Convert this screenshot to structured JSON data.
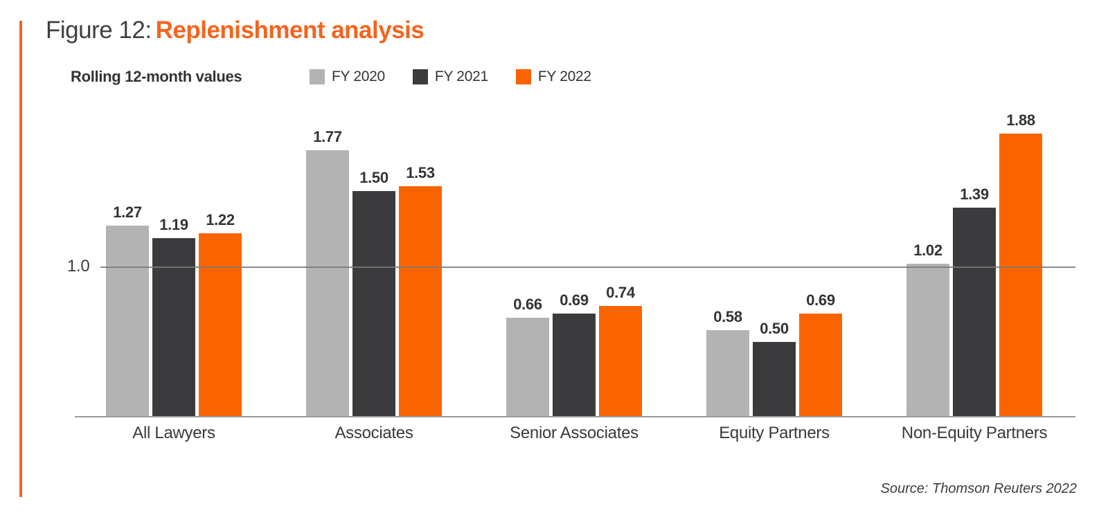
{
  "header": {
    "figure_label": "Figure 12:",
    "figure_subject": "Replenishment analysis"
  },
  "chart": {
    "subtitle": "Rolling 12-month values",
    "reference_line": {
      "label": "1.0",
      "value": 1.0
    }
  },
  "footer": {
    "source": "Source: Thomson Reuters 2022"
  },
  "colors": {
    "accent_orange": "#f4641e",
    "bar_fy2020": "#b3b3b3",
    "bar_fy2021": "#3b3b3d",
    "bar_fy2022": "#fa6400",
    "gridline": "#7a7a7a",
    "axis_line": "#9b9b9b",
    "text_dark": "#333333"
  },
  "chart_data": {
    "type": "bar",
    "title": "Figure 12: Replenishment analysis",
    "subtitle": "Rolling 12-month values",
    "categories": [
      "All Lawyers",
      "Associates",
      "Senior Associates",
      "Equity Partners",
      "Non-Equity Partners"
    ],
    "series": [
      {
        "name": "FY 2020",
        "color": "#b3b3b3",
        "values": [
          1.27,
          1.77,
          0.66,
          0.58,
          1.02
        ]
      },
      {
        "name": "FY 2021",
        "color": "#3b3b3d",
        "values": [
          1.19,
          1.5,
          0.69,
          0.5,
          1.39
        ]
      },
      {
        "name": "FY 2022",
        "color": "#fa6400",
        "values": [
          1.22,
          1.53,
          0.74,
          0.69,
          1.88
        ]
      }
    ],
    "xlabel": "",
    "ylabel": "",
    "ylim": [
      0,
      2.12
    ],
    "reference_line": 1.0,
    "grid": "single horizontal reference line at 1.0",
    "legend_position": "top",
    "value_labels": true,
    "value_label_format": "0.00",
    "source": "Source: Thomson Reuters 2022"
  }
}
